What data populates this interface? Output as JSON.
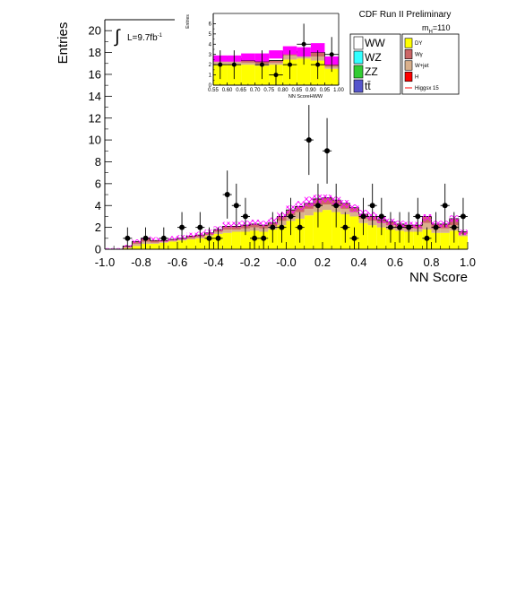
{
  "header": {
    "title": "CDF Run II Preliminary"
  },
  "mass_label": {
    "m": "m",
    "sub": "H",
    "rest": "=110"
  },
  "lumi": {
    "integral": "∫",
    "text": "L=9.7fb",
    "sup": "-1"
  },
  "legend": {
    "left": [
      {
        "label": "WW",
        "color": "#ffffff"
      },
      {
        "label": "WZ",
        "color": "#33ffff"
      },
      {
        "label": "ZZ",
        "color": "#33cc33"
      },
      {
        "label": "tt̄",
        "color": "#5555cc"
      }
    ],
    "right": [
      {
        "label": "DY",
        "color": "#ffff00"
      },
      {
        "label": "Wγ",
        "color": "#cc6666"
      },
      {
        "label": "W+jet",
        "color": "#d9b08c"
      },
      {
        "label": "H",
        "color": "#ff0000"
      },
      {
        "label": "Higgsx 15",
        "color": "#ff0000",
        "line": true
      }
    ]
  },
  "colors": {
    "dy": "#ffff00",
    "wgamma": "#cc6666",
    "wjet": "#d9b08c",
    "uncertainty": "#ff00ff",
    "data": "#000000"
  },
  "chart_data": [
    {
      "type": "bar",
      "xlabel": "NN Score",
      "ylabel": "Entries",
      "xlim": [
        -1.0,
        1.0
      ],
      "ylim": [
        0,
        21
      ],
      "xticks": [
        "-1.0",
        "-0.8",
        "-0.6",
        "-0.4",
        "-0.2",
        "-0.0",
        "0.2",
        "0.4",
        "0.6",
        "0.8",
        "1.0"
      ],
      "yticks": [
        "0",
        "2",
        "4",
        "6",
        "8",
        "10",
        "12",
        "14",
        "16",
        "18",
        "20"
      ],
      "bin_edges": [
        -1.0,
        -0.95,
        -0.9,
        -0.85,
        -0.8,
        -0.75,
        -0.7,
        -0.65,
        -0.6,
        -0.55,
        -0.5,
        -0.45,
        -0.4,
        -0.35,
        -0.3,
        -0.25,
        -0.2,
        -0.15,
        -0.1,
        -0.05,
        0.0,
        0.05,
        0.1,
        0.15,
        0.2,
        0.25,
        0.3,
        0.35,
        0.4,
        0.45,
        0.5,
        0.55,
        0.6,
        0.65,
        0.7,
        0.75,
        0.8,
        0.85,
        0.9,
        0.95,
        1.0
      ],
      "series": [
        {
          "name": "DY",
          "values": [
            0,
            0,
            0.1,
            0.3,
            0.5,
            0.5,
            0.6,
            0.7,
            0.8,
            0.9,
            1.0,
            1.2,
            1.4,
            1.5,
            1.6,
            1.6,
            1.7,
            1.6,
            1.8,
            2.2,
            2.6,
            2.8,
            3.1,
            3.4,
            3.6,
            3.4,
            3.2,
            3.0,
            2.4,
            2.2,
            2.0,
            1.8,
            1.7,
            1.6,
            1.6,
            1.8,
            1.5,
            1.5,
            1.7,
            1.2
          ]
        },
        {
          "name": "W+jet",
          "values": [
            0,
            0,
            0.1,
            0.2,
            0.2,
            0.1,
            0.1,
            0.1,
            0.1,
            0.1,
            0.1,
            0.1,
            0.2,
            0.3,
            0.2,
            0.3,
            0.3,
            0.3,
            0.3,
            0.4,
            0.5,
            0.6,
            0.6,
            0.6,
            0.5,
            0.6,
            0.5,
            0.4,
            0.4,
            0.4,
            0.4,
            0.4,
            0.3,
            0.3,
            0.3,
            0.6,
            0.4,
            0.4,
            0.5,
            0.2
          ]
        },
        {
          "name": "Wγ",
          "values": [
            0,
            0,
            0.1,
            0.2,
            0.3,
            0.2,
            0.1,
            0.1,
            0.1,
            0.2,
            0.2,
            0.2,
            0.2,
            0.3,
            0.3,
            0.3,
            0.3,
            0.3,
            0.3,
            0.4,
            0.5,
            0.5,
            0.5,
            0.6,
            0.6,
            0.5,
            0.5,
            0.4,
            0.4,
            0.4,
            0.3,
            0.3,
            0.3,
            0.3,
            0.3,
            0.6,
            0.4,
            0.4,
            0.6,
            0.2
          ]
        }
      ],
      "uncertainty_band": {
        "lower": [
          0,
          0,
          0.2,
          0.6,
          0.9,
          0.8,
          0.7,
          0.8,
          0.9,
          1.1,
          1.2,
          1.4,
          1.7,
          2.0,
          2.0,
          2.1,
          2.2,
          2.1,
          2.3,
          2.8,
          3.3,
          3.6,
          3.9,
          4.2,
          4.3,
          4.1,
          3.8,
          3.4,
          2.9,
          2.7,
          2.4,
          2.2,
          2.0,
          1.9,
          1.9,
          2.6,
          2.0,
          2.0,
          2.5,
          1.3
        ],
        "upper": [
          0.1,
          0.1,
          0.4,
          0.9,
          1.2,
          1.1,
          1.0,
          1.2,
          1.3,
          1.5,
          1.6,
          1.8,
          2.1,
          2.5,
          2.5,
          2.6,
          2.7,
          2.6,
          2.9,
          3.4,
          4.0,
          4.4,
          4.8,
          5.0,
          5.0,
          4.8,
          4.5,
          4.1,
          3.6,
          3.4,
          3.0,
          2.8,
          2.6,
          2.5,
          2.5,
          3.2,
          2.6,
          2.6,
          3.1,
          1.8
        ]
      },
      "data_points": {
        "x": [
          -0.875,
          -0.775,
          -0.675,
          -0.575,
          -0.475,
          -0.425,
          -0.375,
          -0.325,
          -0.275,
          -0.225,
          -0.175,
          -0.125,
          -0.075,
          -0.025,
          0.025,
          0.075,
          0.125,
          0.175,
          0.225,
          0.275,
          0.325,
          0.375,
          0.425,
          0.475,
          0.525,
          0.575,
          0.625,
          0.675,
          0.725,
          0.775,
          0.825,
          0.875,
          0.925,
          0.975
        ],
        "y": [
          1,
          1,
          1,
          2,
          2,
          1,
          1,
          5,
          4,
          3,
          1,
          1,
          2,
          2,
          3,
          2,
          10,
          4,
          9,
          4,
          2,
          1,
          3,
          4,
          3,
          2,
          2,
          2,
          3,
          1,
          2,
          4,
          2,
          3
        ],
        "err": [
          1.0,
          1.0,
          1.0,
          1.4,
          1.4,
          1.0,
          1.0,
          2.2,
          2.0,
          1.7,
          1.0,
          1.0,
          1.4,
          1.4,
          1.7,
          1.4,
          3.2,
          2.0,
          3.0,
          2.0,
          1.4,
          1.0,
          1.7,
          2.0,
          1.7,
          1.4,
          1.4,
          1.4,
          1.7,
          1.0,
          1.4,
          2.0,
          1.4,
          1.7
        ]
      },
      "legend_position": "top-right"
    },
    {
      "type": "bar",
      "xlabel": "NN ScoreHWW",
      "ylabel": "Entries",
      "xlim": [
        0.55,
        1.0
      ],
      "ylim": [
        0,
        7
      ],
      "xticks": [
        "0.55",
        "0.60",
        "0.65",
        "0.70",
        "0.75",
        "0.80",
        "0.85",
        "0.90",
        "0.95",
        "1.00"
      ],
      "yticks": [
        "0",
        "1",
        "2",
        "3",
        "4",
        "5",
        "6"
      ],
      "bin_edges": [
        0.55,
        0.6,
        0.65,
        0.7,
        0.75,
        0.8,
        0.85,
        0.9,
        0.95,
        1.0
      ],
      "series": [
        {
          "name": "DY",
          "values": [
            2.0,
            2.0,
            2.0,
            1.9,
            2.0,
            2.5,
            2.6,
            2.4,
            1.6
          ]
        },
        {
          "name": "W+jet",
          "values": [
            0.4,
            0.3,
            0.2,
            0.2,
            0.2,
            0.4,
            0.3,
            0.4,
            0.2
          ]
        },
        {
          "name": "Wγ",
          "values": [
            0.3,
            0.3,
            0.2,
            0.2,
            0.2,
            0.4,
            0.3,
            0.4,
            0.2
          ]
        }
      ],
      "uncertainty_band": {
        "lower": [
          2.3,
          2.3,
          2.4,
          2.3,
          2.6,
          3.0,
          2.8,
          3.2,
          2.0
        ],
        "upper": [
          2.9,
          2.9,
          3.1,
          3.1,
          3.4,
          3.8,
          3.7,
          4.1,
          2.8
        ]
      },
      "data_points": {
        "x": [
          0.575,
          0.625,
          0.725,
          0.775,
          0.825,
          0.875,
          0.925,
          0.975
        ],
        "y": [
          2,
          2,
          2,
          1,
          2,
          4,
          2,
          3
        ],
        "err": [
          1.4,
          1.4,
          1.4,
          1.0,
          1.4,
          2.0,
          1.4,
          1.7
        ]
      }
    }
  ]
}
